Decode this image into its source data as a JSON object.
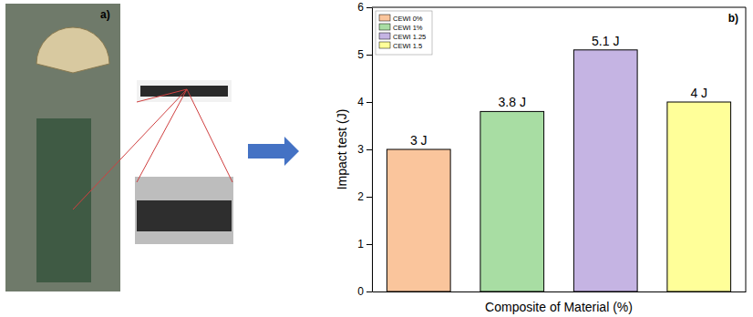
{
  "photo_panel": {
    "label": "a)"
  },
  "chart_data": {
    "type": "bar",
    "annotations": [
      "b)"
    ],
    "x_label": "Composite of Material (%)",
    "y_label": "Impact test (J)",
    "categories": [
      "CEWI 0%",
      "CEWI 1%",
      "CEWI 1.25",
      "CEWI 1.5"
    ],
    "values": [
      3,
      3.8,
      5.1,
      4
    ],
    "value_labels": [
      "3 J",
      "3.8 J",
      "5.1 J",
      "4 J"
    ],
    "colors": [
      "#fac59c",
      "#a8dda3",
      "#c5b4e3",
      "#ffff99"
    ],
    "ylim": [
      0,
      6
    ],
    "yticks": [
      0,
      1,
      2,
      3,
      4,
      5,
      6
    ],
    "data_labels": true,
    "legend": "upper left",
    "tick_labels": "y"
  }
}
